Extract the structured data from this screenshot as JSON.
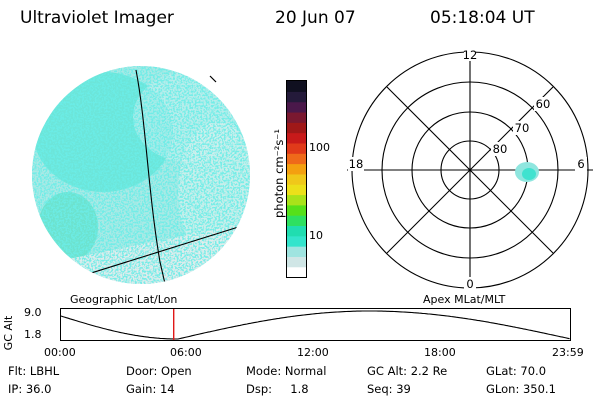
{
  "header": {
    "instrument": "Ultraviolet Imager",
    "date": "20 Jun 07",
    "time": "05:18:04 UT"
  },
  "colorbar": {
    "unit_label": "photon cm⁻²s⁻¹",
    "tick_labels": [
      "100",
      "10"
    ],
    "colors": [
      "#ffffff",
      "#d0e6e6",
      "#9fe4e0",
      "#33e4cc",
      "#20ddb0",
      "#2ee060",
      "#56e01a",
      "#a9e21a",
      "#ece01a",
      "#f0c81a",
      "#f4a010",
      "#ef6a1a",
      "#e03a1a",
      "#c81a1a",
      "#a01818",
      "#7a1830",
      "#4a184a",
      "#241a3a",
      "#101020"
    ]
  },
  "left_panel": {
    "caption": "Geographic Lat/Lon"
  },
  "right_panel": {
    "caption": "Apex MLat/MLT",
    "lat_labels": [
      "60",
      "70",
      "80"
    ],
    "mlt_labels": {
      "top": "12",
      "left": "18",
      "right": "6",
      "bottom": "0"
    }
  },
  "altitude_plot": {
    "axis_label": "GC Alt",
    "y_ticks": [
      "9.0",
      "1.8"
    ],
    "x_ticks": [
      "00:00",
      "06:00",
      "12:00",
      "18:00",
      "23:59"
    ],
    "marker_time": "05:18:04"
  },
  "status": {
    "flt": "Flt: LBHL",
    "door": "Door: Open",
    "mode": "Mode: Normal",
    "gc_alt": "GC Alt: 2.2 Re",
    "glat": "GLat:  70.0",
    "ip": "IP: 36.0",
    "gain": "Gain: 14",
    "dsp": "Dsp:     1.8",
    "seq": "Seq: 39",
    "glon": "GLon: 350.1"
  }
}
